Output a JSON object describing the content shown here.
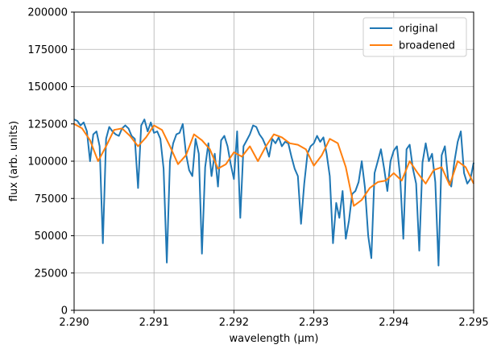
{
  "chart_data": {
    "type": "line",
    "title": "",
    "xlabel": "wavelength (µm)",
    "ylabel": "flux (arb. units)",
    "xlim": [
      2.29,
      2.295
    ],
    "ylim": [
      0,
      200000
    ],
    "x_ticks": [
      2.29,
      2.291,
      2.292,
      2.293,
      2.294,
      2.295
    ],
    "x_tick_labels": [
      "2.290",
      "2.291",
      "2.292",
      "2.293",
      "2.294",
      "2.295"
    ],
    "y_ticks": [
      0,
      25000,
      50000,
      75000,
      100000,
      125000,
      150000,
      175000,
      200000
    ],
    "y_tick_labels": [
      "0",
      "25000",
      "50000",
      "75000",
      "100000",
      "125000",
      "150000",
      "175000",
      "200000"
    ],
    "grid": true,
    "legend_position": "top-right",
    "series": [
      {
        "name": "original",
        "color": "#1f77b4",
        "x": [
          2.29,
          2.29004,
          2.29008,
          2.29012,
          2.29016,
          2.2902,
          2.29024,
          2.29028,
          2.29032,
          2.29036,
          2.2904,
          2.29044,
          2.29048,
          2.29052,
          2.29056,
          2.2906,
          2.29064,
          2.29068,
          2.29072,
          2.29076,
          2.2908,
          2.29084,
          2.29088,
          2.29092,
          2.29096,
          2.291,
          2.29104,
          2.29108,
          2.29112,
          2.29116,
          2.2912,
          2.29124,
          2.29128,
          2.29132,
          2.29136,
          2.2914,
          2.29144,
          2.29148,
          2.29152,
          2.29156,
          2.2916,
          2.29164,
          2.29168,
          2.29172,
          2.29176,
          2.2918,
          2.29184,
          2.29188,
          2.29192,
          2.29196,
          2.292,
          2.29204,
          2.29208,
          2.29212,
          2.29216,
          2.2922,
          2.29224,
          2.29228,
          2.29232,
          2.29236,
          2.2924,
          2.29244,
          2.29248,
          2.29252,
          2.29256,
          2.2926,
          2.29264,
          2.29268,
          2.29272,
          2.29276,
          2.2928,
          2.29284,
          2.29288,
          2.29292,
          2.29296,
          2.293,
          2.29304,
          2.29308,
          2.29312,
          2.29316,
          2.2932,
          2.29324,
          2.29328,
          2.29332,
          2.29336,
          2.2934,
          2.29344,
          2.29348,
          2.29352,
          2.29356,
          2.2936,
          2.29364,
          2.29368,
          2.29372,
          2.29376,
          2.2938,
          2.29384,
          2.29388,
          2.29392,
          2.29396,
          2.294,
          2.29404,
          2.29408,
          2.29412,
          2.29416,
          2.2942,
          2.29424,
          2.29428,
          2.29432,
          2.29436,
          2.2944,
          2.29444,
          2.29448,
          2.29452,
          2.29456,
          2.2946,
          2.29464,
          2.29468,
          2.29472,
          2.29476,
          2.2948,
          2.29484,
          2.29488,
          2.29492,
          2.29496,
          2.295
        ],
        "y": [
          128000,
          127000,
          124000,
          126000,
          120000,
          100000,
          118000,
          120000,
          110000,
          45000,
          115000,
          123000,
          120000,
          118000,
          117000,
          122000,
          124000,
          122000,
          117000,
          115000,
          82000,
          124000,
          128000,
          120000,
          126000,
          119000,
          120000,
          115000,
          95000,
          32000,
          100000,
          112000,
          118000,
          119000,
          125000,
          105000,
          94000,
          90000,
          115000,
          105000,
          38000,
          96000,
          112000,
          90000,
          105000,
          83000,
          114000,
          117000,
          110000,
          98000,
          88000,
          120000,
          62000,
          110000,
          114000,
          118000,
          124000,
          123000,
          118000,
          115000,
          110000,
          103000,
          115000,
          112000,
          116000,
          110000,
          113000,
          112000,
          103000,
          95000,
          90000,
          58000,
          85000,
          105000,
          110000,
          112000,
          117000,
          113000,
          116000,
          105000,
          90000,
          45000,
          72000,
          62000,
          80000,
          48000,
          60000,
          78000,
          80000,
          86000,
          100000,
          82000,
          50000,
          35000,
          92000,
          100000,
          108000,
          95000,
          80000,
          100000,
          107000,
          110000,
          90000,
          48000,
          108000,
          111000,
          95000,
          85000,
          40000,
          99000,
          112000,
          100000,
          105000,
          86000,
          30000,
          104000,
          110000,
          88000,
          83000,
          100000,
          113000,
          120000,
          92000,
          85000,
          88000,
          99000
        ]
      },
      {
        "name": "broadened",
        "color": "#ff7f0e",
        "x": [
          2.29,
          2.2901,
          2.2902,
          2.2903,
          2.2904,
          2.2905,
          2.2906,
          2.2907,
          2.2908,
          2.2909,
          2.291,
          2.2911,
          2.2912,
          2.2913,
          2.2914,
          2.2915,
          2.2916,
          2.2917,
          2.2918,
          2.2919,
          2.292,
          2.2921,
          2.2922,
          2.2923,
          2.2924,
          2.2925,
          2.2926,
          2.2927,
          2.2928,
          2.2929,
          2.293,
          2.2931,
          2.2932,
          2.2933,
          2.2934,
          2.2935,
          2.2936,
          2.2937,
          2.2938,
          2.2939,
          2.294,
          2.2941,
          2.2942,
          2.2943,
          2.2944,
          2.2945,
          2.2946,
          2.2947,
          2.2948,
          2.2949,
          2.295
        ],
        "y": [
          125000,
          122000,
          114000,
          100000,
          110000,
          121000,
          122000,
          117000,
          110000,
          116000,
          124000,
          121000,
          110000,
          98000,
          104000,
          118000,
          114000,
          108000,
          95000,
          98000,
          106000,
          103000,
          110000,
          100000,
          110000,
          118000,
          116000,
          112000,
          111000,
          108000,
          97000,
          104000,
          115000,
          112000,
          96000,
          70000,
          74000,
          82000,
          86000,
          87000,
          92000,
          87000,
          100000,
          92000,
          85000,
          94000,
          96000,
          84000,
          100000,
          96000,
          85000
        ]
      }
    ]
  }
}
